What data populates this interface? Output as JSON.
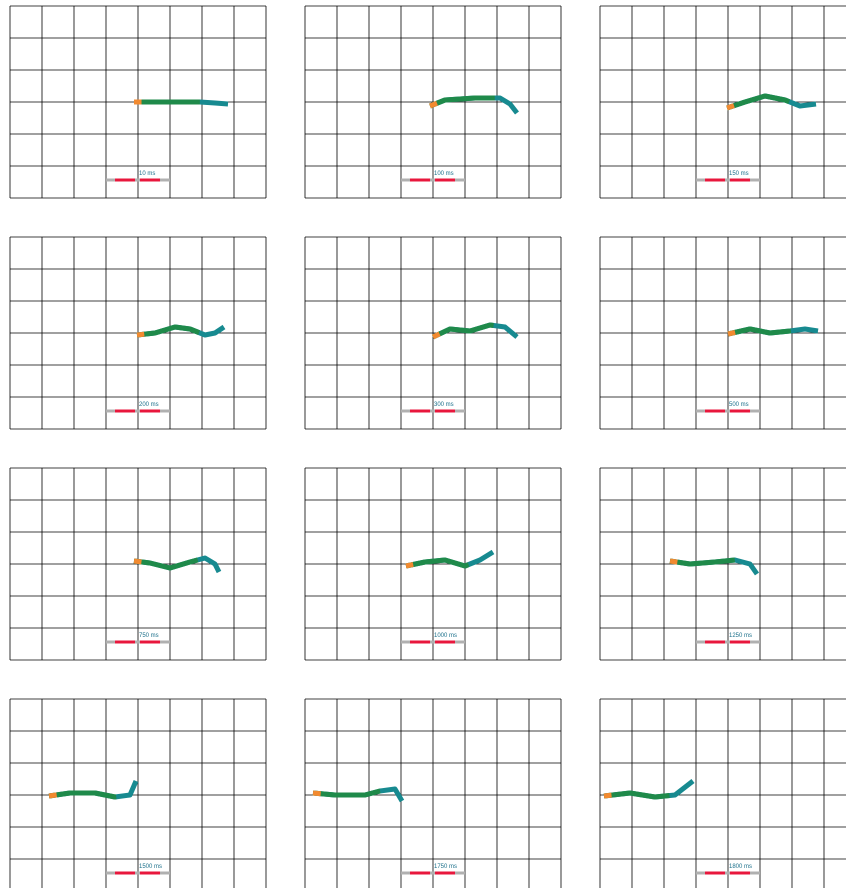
{
  "panels": [
    {
      "label": "10 ms"
    },
    {
      "label": "100 ms"
    },
    {
      "label": "150 ms"
    },
    {
      "label": "200 ms"
    },
    {
      "label": "300 ms"
    },
    {
      "label": "500 ms"
    },
    {
      "label": "750 ms"
    },
    {
      "label": "1000 ms"
    },
    {
      "label": "1250 ms"
    },
    {
      "label": "1500 ms"
    },
    {
      "label": "1750 ms"
    },
    {
      "label": "1800 ms"
    }
  ]
}
